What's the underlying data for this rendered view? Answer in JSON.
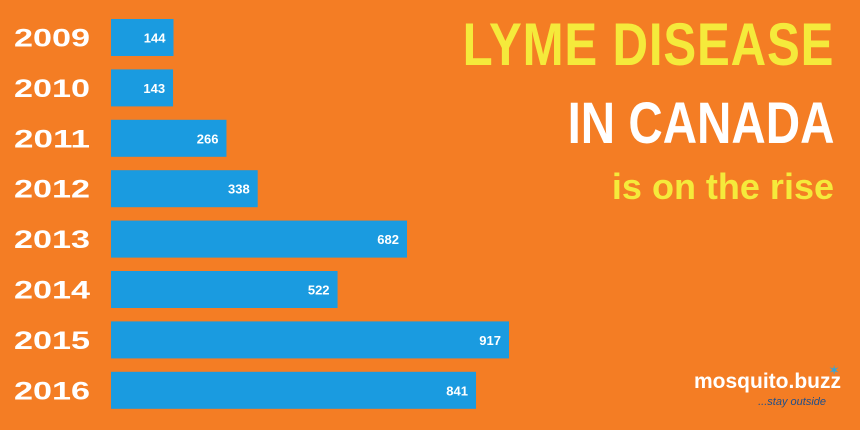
{
  "title": {
    "line1": "LYME DISEASE",
    "line2": "IN CANADA",
    "line3": "is on the rise"
  },
  "logo": {
    "name": "mosquito.buzz",
    "tagline": "...stay outside"
  },
  "colors": {
    "background": "#f47d24",
    "bar": "#1a9be0",
    "title_yellow": "#f5ea3b",
    "title_white": "#ffffff"
  },
  "chart_data": {
    "type": "bar",
    "orientation": "horizontal",
    "categories": [
      "2009",
      "2010",
      "2011",
      "2012",
      "2013",
      "2014",
      "2015",
      "2016"
    ],
    "values": [
      144,
      143,
      266,
      338,
      682,
      522,
      917,
      841
    ],
    "title": "",
    "xlabel": "",
    "ylabel": "",
    "xlim": [
      0,
      917
    ],
    "grid": false,
    "legend": "none"
  }
}
